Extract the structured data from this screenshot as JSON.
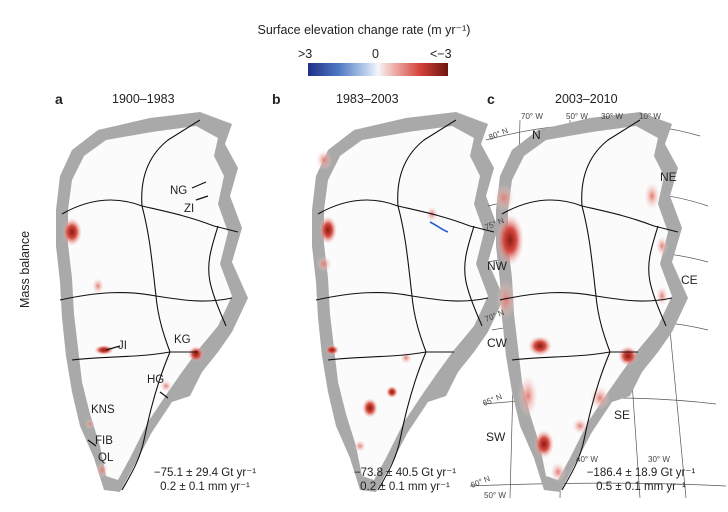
{
  "colorbar": {
    "title": "Surface elevation change rate (m yr⁻¹)",
    "min_label": ">3",
    "mid_label": "0",
    "max_label": "<−3",
    "colors": [
      "#1f2f88",
      "#f4f6fa",
      "#6e1410"
    ]
  },
  "y_label": "Mass balance",
  "panels": [
    {
      "letter": "a",
      "period": "1900–1983",
      "mass_rate": "−75.1 ± 29.4 Gt yr⁻¹",
      "sea_level": "0.2 ± 0.1 mm yr⁻¹"
    },
    {
      "letter": "b",
      "period": "1983–2003",
      "mass_rate": "−73.8 ± 40.5 Gt yr⁻¹",
      "sea_level": "0.2 ± 0.1 mm yr⁻¹"
    },
    {
      "letter": "c",
      "period": "2003–2010",
      "mass_rate": "−186.4 ± 18.9 Gt yr⁻¹",
      "sea_level": "0.5 ± 0.1 mm yr⁻¹"
    }
  ],
  "glaciers": [
    "NG",
    "ZI",
    "JI",
    "KG",
    "HG",
    "KNS",
    "FIB",
    "QL"
  ],
  "regions": [
    "N",
    "NE",
    "NW",
    "CE",
    "CW",
    "SE",
    "SW"
  ],
  "graticule": {
    "longitudes": [
      "70° W",
      "50° W",
      "30° W",
      "10° W",
      "40° W",
      "30° W",
      "50° W"
    ],
    "latitudes": [
      "80° N",
      "75° N",
      "70° N",
      "65° N",
      "60° N"
    ]
  }
}
